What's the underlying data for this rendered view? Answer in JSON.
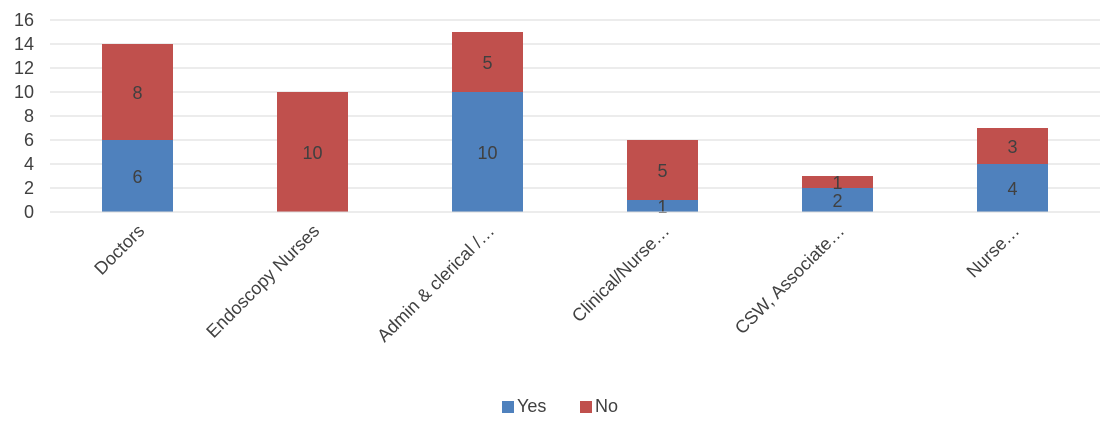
{
  "chart_data": {
    "type": "bar",
    "stacked": true,
    "categories": [
      "Doctors",
      "Endoscopy Nurses",
      "Admin & clerical /…",
      "Clinical/Nurse…",
      "CSW, Associate…",
      "Nurse…"
    ],
    "series": [
      {
        "name": "Yes",
        "values": [
          6,
          0,
          10,
          1,
          2,
          4
        ],
        "color": "#4F81BD"
      },
      {
        "name": "No",
        "values": [
          8,
          10,
          5,
          5,
          1,
          3
        ],
        "color": "#C0504D"
      }
    ],
    "ylim": [
      0,
      16
    ],
    "yticks": [
      "0",
      "2",
      "4",
      "6",
      "8",
      "10",
      "12",
      "14",
      "16"
    ],
    "grid": true,
    "legend_position": "bottom"
  }
}
